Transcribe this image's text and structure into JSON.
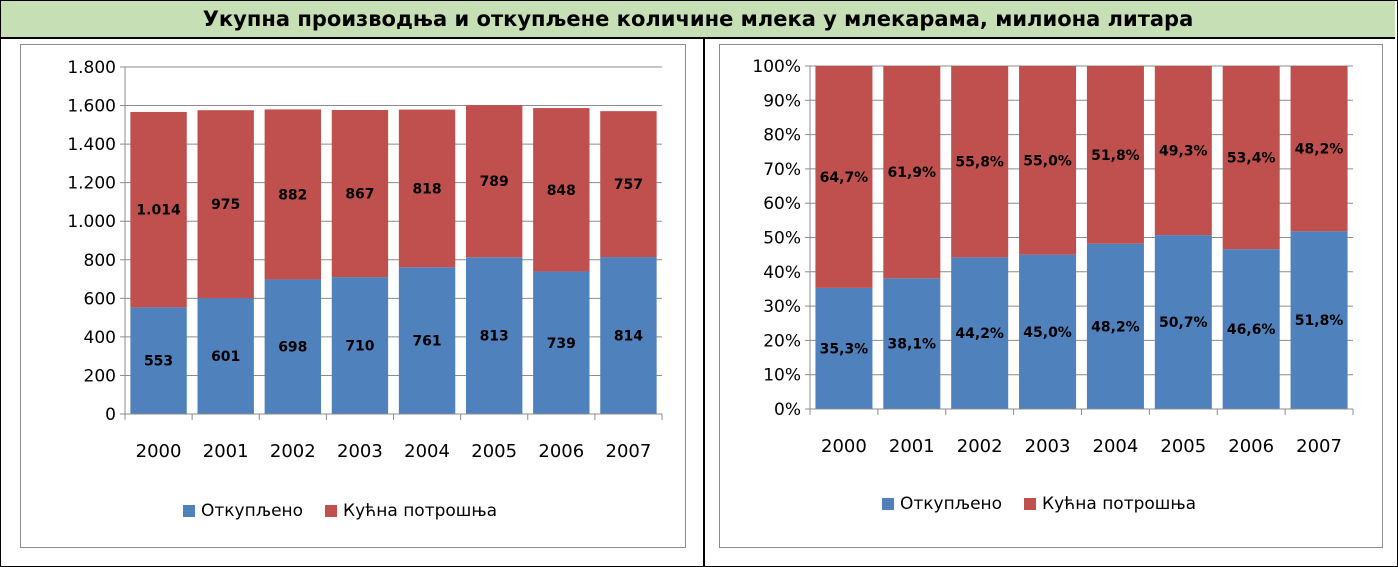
{
  "title": "Укупна производња и откупљене количине млека у млекарама, милиона литара",
  "colors": {
    "blue": "#4f81bd",
    "red": "#c0504d",
    "grid": "#8c8c8c"
  },
  "chart_data": [
    {
      "type": "bar",
      "stacked": true,
      "categories": [
        "2000",
        "2001",
        "2002",
        "2003",
        "2004",
        "2005",
        "2006",
        "2007"
      ],
      "series": [
        {
          "name": "Откупљено",
          "values": [
            553,
            601,
            698,
            710,
            761,
            813,
            739,
            814
          ],
          "labels": [
            "553",
            "601",
            "698",
            "710",
            "761",
            "813",
            "739",
            "814"
          ]
        },
        {
          "name": "Кућна потрошња",
          "values": [
            1014,
            975,
            882,
            867,
            818,
            789,
            848,
            757
          ],
          "labels": [
            "1.014",
            "975",
            "882",
            "867",
            "818",
            "789",
            "848",
            "757"
          ]
        }
      ],
      "ylim": [
        0,
        1800
      ],
      "yticks": [
        0,
        200,
        400,
        600,
        800,
        1000,
        1200,
        1400,
        1600,
        1800
      ],
      "ytick_labels": [
        "0",
        "200",
        "400",
        "600",
        "800",
        "1.000",
        "1.200",
        "1.400",
        "1.600",
        "1.800"
      ],
      "grid": true,
      "legend": "bottom"
    },
    {
      "type": "bar",
      "stacked": true,
      "percent": true,
      "categories": [
        "2000",
        "2001",
        "2002",
        "2003",
        "2004",
        "2005",
        "2006",
        "2007"
      ],
      "series": [
        {
          "name": "Откупљено",
          "values": [
            35.3,
            38.1,
            44.2,
            45.0,
            48.2,
            50.7,
            46.6,
            51.8
          ],
          "labels": [
            "35,3%",
            "38,1%",
            "44,2%",
            "45,0%",
            "48,2%",
            "50,7%",
            "46,6%",
            "51,8%"
          ]
        },
        {
          "name": "Кућна потрошња",
          "values": [
            64.7,
            61.9,
            55.8,
            55.0,
            51.8,
            49.3,
            53.4,
            48.2
          ],
          "labels": [
            "64,7%",
            "61,9%",
            "55,8%",
            "55,0%",
            "51,8%",
            "49,3%",
            "53,4%",
            "48,2%"
          ]
        }
      ],
      "ylim": [
        0,
        100
      ],
      "yticks": [
        0,
        10,
        20,
        30,
        40,
        50,
        60,
        70,
        80,
        90,
        100
      ],
      "ytick_labels": [
        "0%",
        "10%",
        "20%",
        "30%",
        "40%",
        "50%",
        "60%",
        "70%",
        "80%",
        "90%",
        "100%"
      ],
      "grid": true,
      "legend": "bottom"
    }
  ]
}
